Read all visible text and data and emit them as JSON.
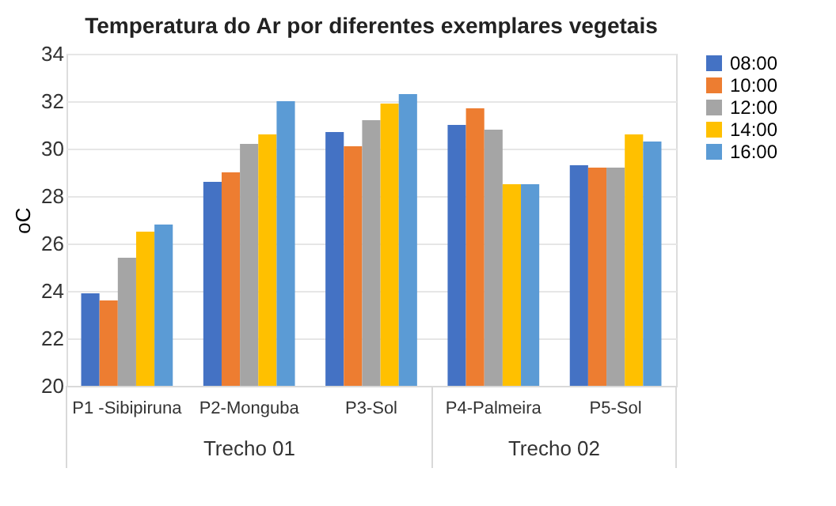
{
  "chart_data": {
    "type": "bar",
    "title": "Temperatura do Ar por diferentes exemplares vegetais",
    "ylabel": "oC",
    "categories": [
      "P1 -Sibipiruna",
      "P2-Monguba",
      "P3-Sol",
      "P4-Palmeira",
      "P5-Sol"
    ],
    "series": [
      {
        "name": "08:00",
        "color": "#4472c4",
        "values": [
          23.9,
          28.6,
          30.7,
          31.0,
          29.3
        ]
      },
      {
        "name": "10:00",
        "color": "#ed7d31",
        "values": [
          23.6,
          29.0,
          30.1,
          31.7,
          29.2
        ]
      },
      {
        "name": "12:00",
        "color": "#a5a5a5",
        "values": [
          25.4,
          30.2,
          31.2,
          30.8,
          29.2
        ]
      },
      {
        "name": "14:00",
        "color": "#ffc000",
        "values": [
          26.5,
          30.6,
          31.9,
          28.5,
          30.6
        ]
      },
      {
        "name": "16:00",
        "color": "#5b9bd5",
        "values": [
          26.8,
          32.0,
          32.3,
          28.5,
          30.3
        ]
      }
    ],
    "ylim": [
      20,
      34
    ],
    "yticks": [
      20,
      22,
      24,
      26,
      28,
      30,
      32,
      34
    ],
    "grid": "y",
    "legend": "right",
    "annotations": [
      "Trecho 01",
      "Trecho 02"
    ]
  }
}
